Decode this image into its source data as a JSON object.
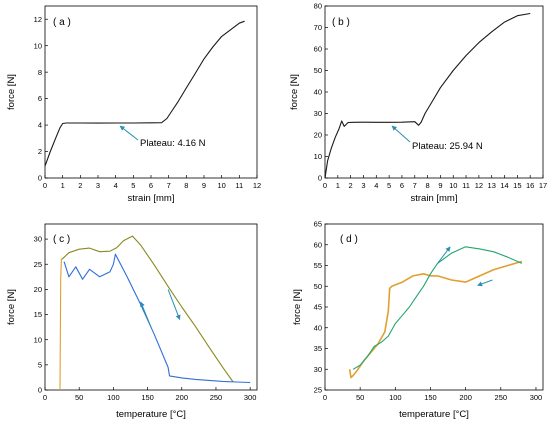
{
  "colors": {
    "black": "#1a1a1a",
    "blue": "#2f6fd6",
    "olive": "#8a8a1e",
    "orange": "#e0a030",
    "green": "#22a66e",
    "teal_arrow": "#2a8fb2"
  },
  "chart_data": [
    {
      "id": "a",
      "type": "line",
      "panel_label": "( a )",
      "xlabel": "strain [mm]",
      "ylabel": "force [N]",
      "xlim": [
        0,
        12
      ],
      "ylim": [
        0,
        13
      ],
      "xticks": [
        0,
        1,
        2,
        3,
        4,
        5,
        6,
        7,
        8,
        9,
        10,
        11,
        12
      ],
      "yticks": [
        0,
        2,
        4,
        6,
        8,
        10,
        12
      ],
      "annotation": "Plateau: 4.16 N",
      "series": [
        {
          "color": "black",
          "x": [
            0,
            0.3,
            0.6,
            0.85,
            1.0,
            1.2,
            2,
            3,
            4,
            5,
            6,
            6.6,
            6.9,
            7.2,
            7.5,
            8,
            8.5,
            9,
            9.5,
            10,
            10.5,
            11,
            11.3
          ],
          "y": [
            0.9,
            2.0,
            3.0,
            3.8,
            4.12,
            4.16,
            4.16,
            4.15,
            4.16,
            4.16,
            4.17,
            4.18,
            4.5,
            5.1,
            5.7,
            6.8,
            7.9,
            9.0,
            9.9,
            10.7,
            11.2,
            11.7,
            11.85
          ]
        }
      ]
    },
    {
      "id": "b",
      "type": "line",
      "panel_label": "( b )",
      "xlabel": "strain [mm]",
      "ylabel": "force [N]",
      "xlim": [
        0,
        17
      ],
      "ylim": [
        0,
        80
      ],
      "xticks": [
        0,
        1,
        2,
        3,
        4,
        5,
        6,
        7,
        8,
        9,
        10,
        11,
        12,
        13,
        14,
        15,
        16,
        17
      ],
      "yticks": [
        0,
        10,
        20,
        30,
        40,
        50,
        60,
        70,
        80
      ],
      "annotation": "Plateau: 25.94 N",
      "series": [
        {
          "color": "black",
          "x": [
            0,
            0.2,
            0.5,
            0.8,
            1.1,
            1.3,
            1.5,
            1.8,
            2.2,
            3,
            4,
            5,
            6,
            7,
            7.3,
            7.5,
            7.8,
            8.2,
            9,
            10,
            11,
            12,
            13,
            14,
            15,
            16
          ],
          "y": [
            0,
            8,
            14,
            19,
            23,
            26.5,
            24,
            25.8,
            25.9,
            25.94,
            25.9,
            25.9,
            25.95,
            26.2,
            24.5,
            26,
            30,
            34,
            42,
            50,
            57,
            63,
            68,
            72.5,
            75.5,
            76.5
          ]
        }
      ]
    },
    {
      "id": "c",
      "type": "line",
      "panel_label": "( c )",
      "xlabel": "temperature [°C]",
      "ylabel": "force [N]",
      "xlim": [
        0,
        310
      ],
      "ylim": [
        0,
        33
      ],
      "xticks": [
        0,
        50,
        100,
        150,
        200,
        250,
        300
      ],
      "yticks": [
        0,
        5,
        10,
        15,
        20,
        25,
        30
      ],
      "series": [
        {
          "color": "orange",
          "x": [
            22,
            23,
            24,
            25
          ],
          "y": [
            0,
            22,
            26,
            26
          ]
        },
        {
          "color": "olive",
          "x": [
            25,
            35,
            50,
            65,
            80,
            95,
            105,
            115,
            128,
            140,
            160,
            180,
            200,
            220,
            240,
            260,
            275
          ],
          "y": [
            26,
            27.3,
            28,
            28.2,
            27.5,
            27.6,
            28.3,
            29.7,
            30.6,
            28.8,
            24.8,
            20.6,
            16.5,
            12.6,
            8.5,
            4.5,
            1.6
          ]
        },
        {
          "color": "blue",
          "x": [
            28,
            35,
            45,
            55,
            65,
            80,
            95,
            100,
            103,
            120,
            140,
            160,
            180,
            182,
            200,
            220,
            240,
            260,
            280,
            300
          ],
          "y": [
            25.5,
            22.5,
            24.5,
            22,
            24,
            22.5,
            23.5,
            25,
            27,
            22.5,
            17,
            11,
            4.5,
            2.8,
            2.4,
            2.1,
            1.9,
            1.7,
            1.6,
            1.5
          ]
        }
      ],
      "arrows": [
        {
          "color": "teal_arrow",
          "from": [
            155,
            12.5
          ],
          "to": [
            140,
            17.5
          ]
        },
        {
          "color": "teal_arrow",
          "from": [
            180,
            20
          ],
          "to": [
            197,
            14
          ]
        }
      ]
    },
    {
      "id": "d",
      "type": "line",
      "panel_label": "( d )",
      "xlabel": "temperature [°C]",
      "ylabel": "force [N]",
      "xlim": [
        0,
        310
      ],
      "ylim": [
        25,
        65
      ],
      "xticks": [
        0,
        50,
        100,
        150,
        200,
        250,
        300
      ],
      "yticks": [
        25,
        30,
        35,
        40,
        45,
        50,
        55,
        60,
        65
      ],
      "series": [
        {
          "color": "orange",
          "x": [
            35,
            37,
            40,
            45,
            55,
            65,
            75,
            85,
            90,
            92,
            95,
            110,
            125,
            140,
            150,
            160,
            180,
            200,
            220,
            240,
            260,
            280
          ],
          "y": [
            30,
            28,
            28.5,
            29.5,
            32,
            34,
            36,
            39,
            44,
            49.5,
            50,
            51,
            52.5,
            53,
            52.5,
            52.5,
            51.5,
            51,
            52.5,
            54,
            55,
            56
          ]
        },
        {
          "color": "green",
          "x": [
            40,
            50,
            60,
            70,
            80,
            90,
            100,
            110,
            120,
            130,
            140,
            150,
            160,
            180,
            200,
            220,
            240,
            260,
            280
          ],
          "y": [
            30,
            31,
            33,
            35.5,
            36.5,
            38,
            41,
            43,
            45,
            47.5,
            50,
            53,
            55.5,
            58,
            59.5,
            59,
            58.3,
            57,
            55.5
          ]
        }
      ],
      "arrows": [
        {
          "color": "teal_arrow",
          "from": [
            160,
            55.5
          ],
          "to": [
            178,
            59.5
          ]
        },
        {
          "color": "teal_arrow",
          "from": [
            238,
            51.5
          ],
          "to": [
            217,
            50.2
          ]
        }
      ]
    }
  ]
}
